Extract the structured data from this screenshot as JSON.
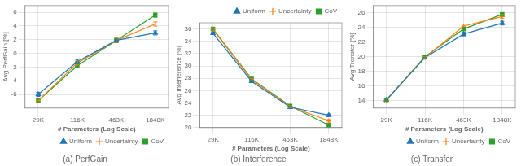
{
  "chart_data": [
    {
      "type": "line",
      "title": "(a) PerfGain",
      "xlabel": "# Parameters (Log Scale)",
      "ylabel": "Avg PerfGain [%]",
      "x": [
        29000,
        116000,
        463000,
        1848000
      ],
      "log": "x",
      "xlim": [
        18125,
        2956800
      ],
      "xticks": [
        {
          "value": 29000,
          "label": "29K"
        },
        {
          "value": 116000,
          "label": "116K"
        },
        {
          "value": 463000,
          "label": "463K"
        },
        {
          "value": 1848000,
          "label": "1848K"
        }
      ],
      "ylim": [
        -8,
        7
      ],
      "yticks": [
        -6,
        -4,
        -2,
        0,
        2,
        4,
        6
      ],
      "grid": true,
      "legend": "lower right",
      "series": [
        {
          "name": "Uniform",
          "color": "#1f77b4",
          "marker": "triangle",
          "values": [
            -6.0,
            -1.2,
            1.9,
            3.0
          ],
          "yerr": [
            0.3,
            0.3,
            0.3,
            0.3
          ]
        },
        {
          "name": "Uncertainty",
          "color": "#ff7f0e",
          "marker": "plus",
          "values": [
            -6.9,
            -1.4,
            1.9,
            4.3
          ],
          "yerr": [
            0.3,
            0.3,
            0.3,
            0.3
          ]
        },
        {
          "name": "CoV",
          "color": "#2ca02c",
          "marker": "square",
          "values": [
            -6.9,
            -1.8,
            1.9,
            5.6
          ],
          "yerr": [
            0.3,
            0.3,
            0.3,
            0.3
          ]
        }
      ]
    },
    {
      "type": "line",
      "title": "(b) Interference",
      "xlabel": "# Parameters (Log Scale)",
      "ylabel": "Avg Interference [%]",
      "x": [
        29000,
        116000,
        463000,
        1848000
      ],
      "log": "x",
      "xlim": [
        18125,
        2956800
      ],
      "xticks": [
        {
          "value": 29000,
          "label": "29K"
        },
        {
          "value": 116000,
          "label": "116K"
        },
        {
          "value": 463000,
          "label": "463K"
        },
        {
          "value": 1848000,
          "label": "1848K"
        }
      ],
      "ylim": [
        20,
        37
      ],
      "yticks": [
        20,
        22,
        24,
        26,
        28,
        30,
        32,
        34,
        36
      ],
      "grid": true,
      "legend": "upper right",
      "series": [
        {
          "name": "Uniform",
          "color": "#1f77b4",
          "marker": "triangle",
          "values": [
            35.3,
            27.5,
            23.3,
            22.0
          ],
          "yerr": [
            0.2,
            0.2,
            0.2,
            0.2
          ]
        },
        {
          "name": "Uncertainty",
          "color": "#ff7f0e",
          "marker": "plus",
          "values": [
            35.9,
            27.8,
            23.4,
            21.1
          ],
          "yerr": [
            0.2,
            0.2,
            0.2,
            0.2
          ]
        },
        {
          "name": "CoV",
          "color": "#2ca02c",
          "marker": "square",
          "values": [
            36.0,
            27.9,
            23.5,
            20.4
          ],
          "yerr": [
            0.2,
            0.2,
            0.2,
            0.2
          ]
        }
      ]
    },
    {
      "type": "line",
      "title": "(c) Transfer",
      "xlabel": "# Parameters (Log Scale)",
      "ylabel": "Avg Transfer [%]",
      "x": [
        29000,
        116000,
        463000,
        1848000
      ],
      "log": "x",
      "xlim": [
        18125,
        2956800
      ],
      "xticks": [
        {
          "value": 29000,
          "label": "29K"
        },
        {
          "value": 116000,
          "label": "116K"
        },
        {
          "value": 463000,
          "label": "463K"
        },
        {
          "value": 1848000,
          "label": "1848K"
        }
      ],
      "ylim": [
        13,
        27
      ],
      "yticks": [
        14,
        16,
        18,
        20,
        22,
        24,
        26
      ],
      "grid": true,
      "legend": "lower right",
      "series": [
        {
          "name": "Uniform",
          "color": "#1f77b4",
          "marker": "triangle",
          "values": [
            14.1,
            19.9,
            23.1,
            24.6
          ],
          "yerr": [
            0.15,
            0.15,
            0.25,
            0.25
          ]
        },
        {
          "name": "Uncertainty",
          "color": "#ff7f0e",
          "marker": "plus",
          "values": [
            14.1,
            19.9,
            24.2,
            25.5
          ],
          "yerr": [
            0.15,
            0.15,
            0.25,
            0.25
          ]
        },
        {
          "name": "CoV",
          "color": "#2ca02c",
          "marker": "square",
          "values": [
            14.1,
            20.0,
            23.8,
            25.8
          ],
          "yerr": [
            0.15,
            0.15,
            0.25,
            0.25
          ]
        }
      ]
    }
  ]
}
